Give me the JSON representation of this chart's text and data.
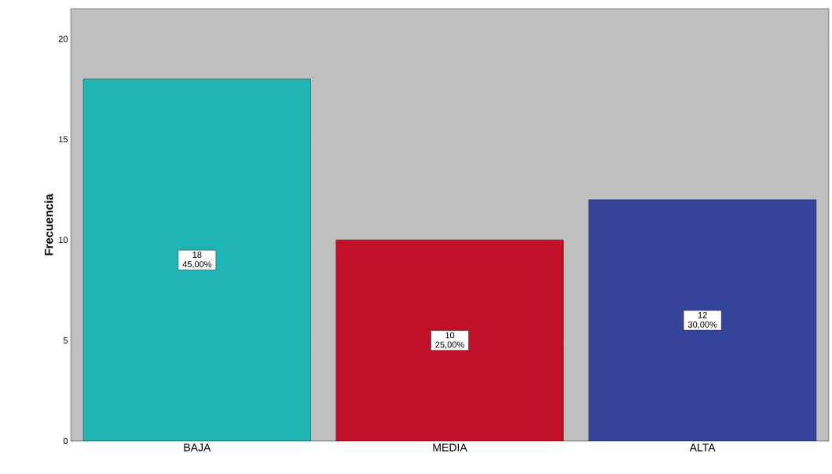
{
  "chart_data": {
    "type": "bar",
    "ylabel": "Frecuencia",
    "categories": [
      "BAJA",
      "MEDIA",
      "ALTA"
    ],
    "values": [
      18,
      10,
      12
    ],
    "colors": [
      "#1fb5b5",
      "#c0102a",
      "#35449a"
    ],
    "value_labels": [
      "18 45,00%",
      "10 25,00%",
      "12 30,00%"
    ],
    "ylim": [
      0,
      21.5
    ],
    "yticks": [
      0,
      5,
      10,
      15,
      20
    ],
    "grid": "y"
  }
}
